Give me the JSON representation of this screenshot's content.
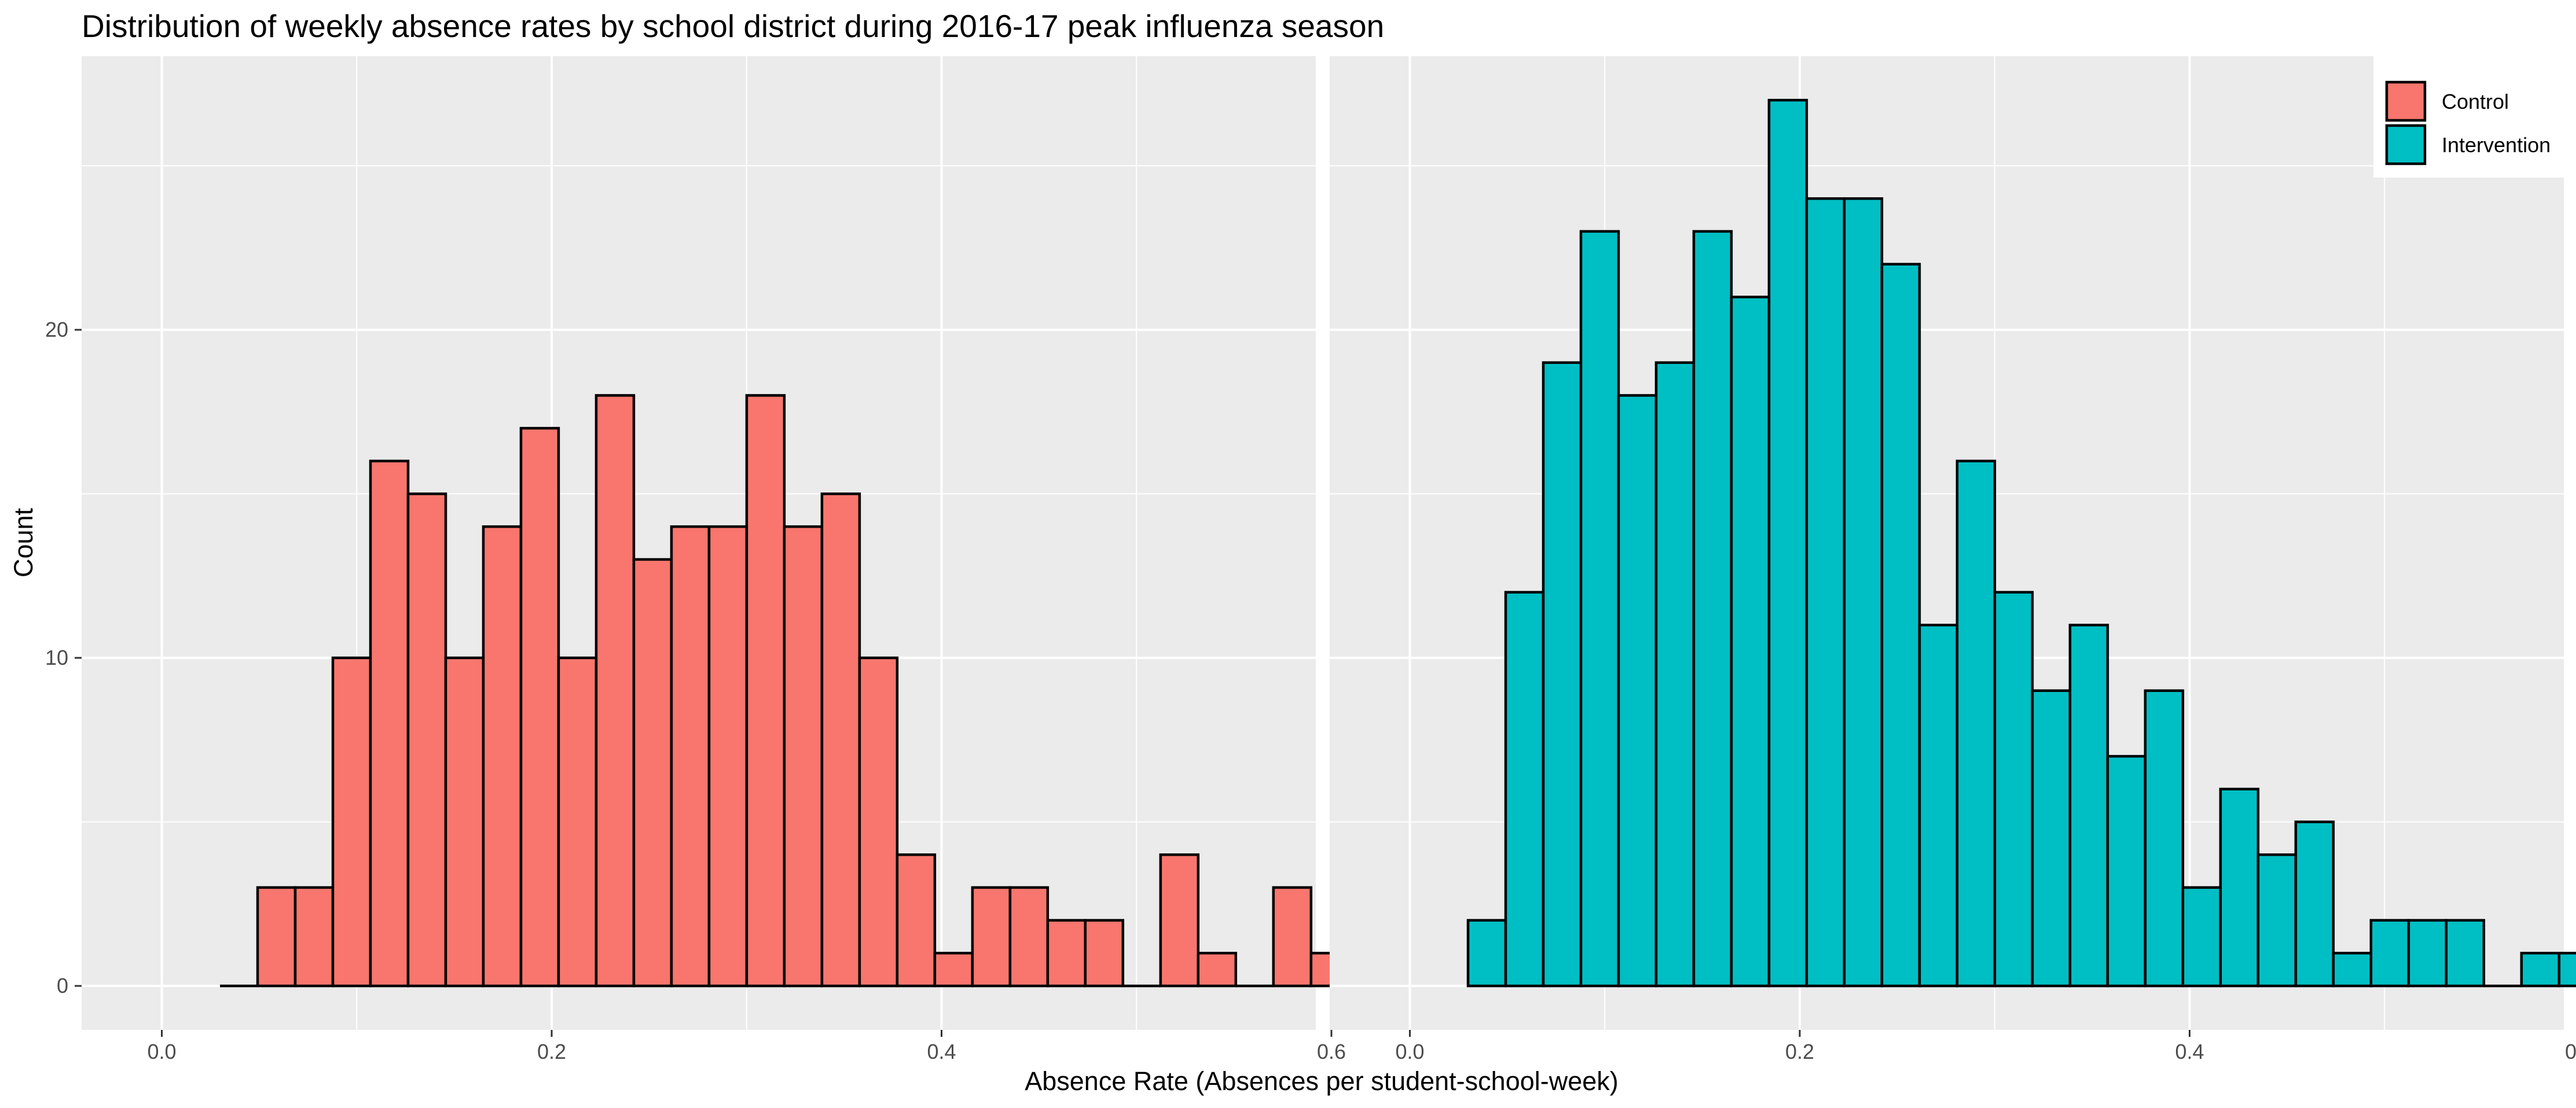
{
  "chart_data": {
    "type": "bar",
    "title": "Distribution of weekly absence rates by school district during 2016-17 peak influenza season",
    "xlabel": "Absence Rate (Absences per student-school-week)",
    "ylabel": "Count",
    "xlim": [
      0.0,
      0.62
    ],
    "ylim": [
      0,
      27
    ],
    "x_ticks": [
      "0.0",
      "0.2",
      "0.4",
      "0.6"
    ],
    "y_ticks": [
      "0",
      "10",
      "20"
    ],
    "grid": true,
    "legend_position": "top-right",
    "bin_width": 0.0193,
    "bin_centers": [
      0.0395,
      0.0588,
      0.0781,
      0.0974,
      0.1167,
      0.136,
      0.1553,
      0.1746,
      0.1939,
      0.2132,
      0.2325,
      0.2518,
      0.2711,
      0.2904,
      0.3097,
      0.329,
      0.3483,
      0.3676,
      0.3869,
      0.4062,
      0.4255,
      0.4448,
      0.4641,
      0.4834,
      0.5027,
      0.522,
      0.5413,
      0.5606,
      0.5799,
      0.5992
    ],
    "series": [
      {
        "name": "Control",
        "color": "#f8766d",
        "values": [
          0,
          3,
          3,
          10,
          16,
          15,
          10,
          14,
          17,
          10,
          18,
          13,
          14,
          14,
          18,
          14,
          15,
          10,
          4,
          1,
          3,
          3,
          2,
          2,
          0,
          4,
          1,
          0,
          3,
          1
        ]
      },
      {
        "name": "Intervention",
        "color": "#00bfc4",
        "values": [
          2,
          12,
          19,
          23,
          18,
          19,
          23,
          21,
          27,
          24,
          24,
          22,
          11,
          16,
          12,
          9,
          11,
          7,
          9,
          3,
          6,
          4,
          5,
          1,
          2,
          2,
          2,
          0,
          1,
          1
        ]
      }
    ]
  }
}
